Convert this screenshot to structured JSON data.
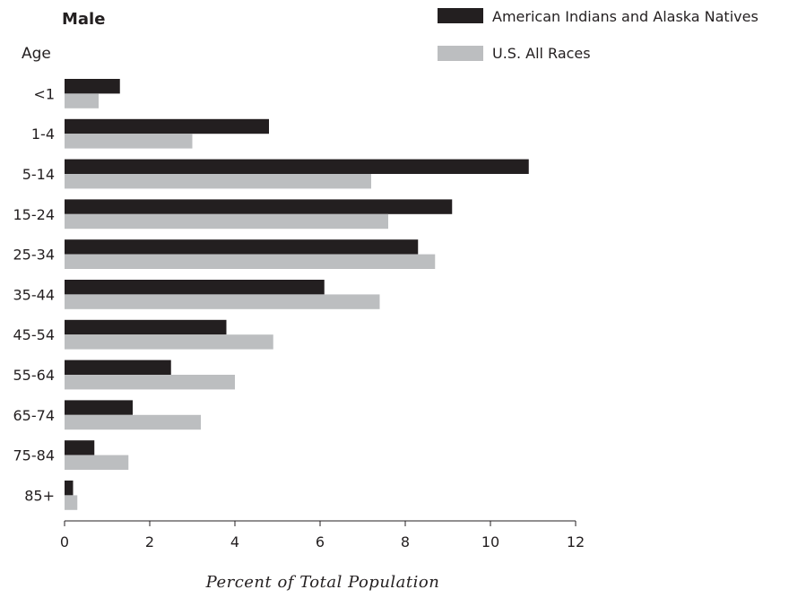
{
  "chart_data": {
    "type": "bar",
    "orientation": "horizontal",
    "title": "Male",
    "category_axis_title": "Age",
    "xlabel": "Percent of Total Population",
    "ylabel": "Age",
    "categories": [
      "<1",
      "1-4",
      "5-14",
      "15-24",
      "25-34",
      "35-44",
      "45-54",
      "55-64",
      "65-74",
      "75-84",
      "85+"
    ],
    "series": [
      {
        "name": "American Indians and Alaska Natives",
        "color": "#231f20",
        "values": [
          1.3,
          4.8,
          10.9,
          9.1,
          8.3,
          6.1,
          3.8,
          2.5,
          1.6,
          0.7,
          0.2
        ]
      },
      {
        "name": "U.S. All Races",
        "color": "#bcbec0",
        "values": [
          0.8,
          3.0,
          7.2,
          7.6,
          8.7,
          7.4,
          4.9,
          4.0,
          3.2,
          1.5,
          0.3
        ]
      }
    ],
    "xlim": [
      0,
      12
    ],
    "xticks": [
      0,
      2,
      4,
      6,
      8,
      10,
      12
    ],
    "grid": false,
    "legend_position": "top-right"
  }
}
